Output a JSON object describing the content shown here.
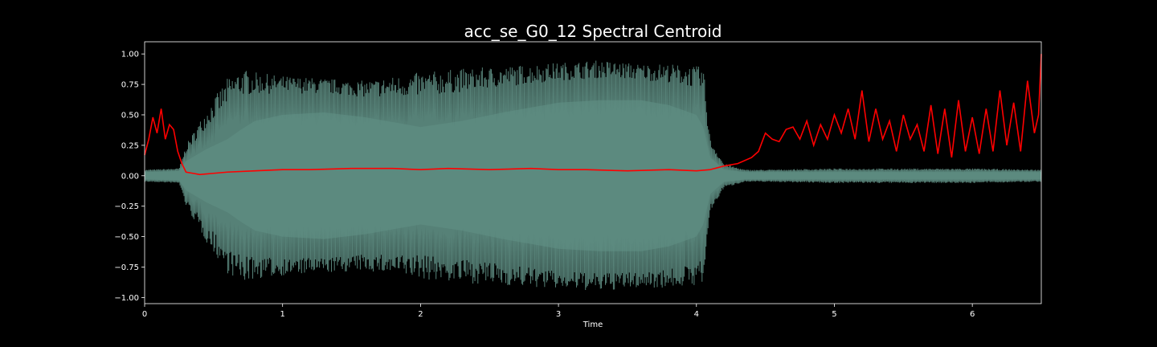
{
  "chart_data": {
    "type": "line",
    "title": "acc_se_G0_12 Spectral Centroid",
    "xlabel": "Time",
    "ylabel": "",
    "xlim": [
      0,
      6.5
    ],
    "ylim": [
      -1.05,
      1.1
    ],
    "x_ticks": [
      0,
      1,
      2,
      3,
      4,
      5,
      6
    ],
    "y_ticks": [
      -1.0,
      -0.75,
      -0.5,
      -0.25,
      0.0,
      0.25,
      0.5,
      0.75,
      1.0
    ],
    "x_tick_labels": [
      "0",
      "1",
      "2",
      "3",
      "4",
      "5",
      "6"
    ],
    "y_tick_labels": [
      "−1.00",
      "−0.75",
      "−0.50",
      "−0.25",
      "0.00",
      "0.25",
      "0.50",
      "0.75",
      "1.00"
    ],
    "grid": false,
    "background": "#000000",
    "axis_color": "#ffffff",
    "waveform": {
      "color": "#5f8f84",
      "fill_color": "#3d5a52",
      "envelope": {
        "t": [
          0,
          0.25,
          0.3,
          0.45,
          0.6,
          0.7,
          0.8,
          1.0,
          1.3,
          1.6,
          2.0,
          2.3,
          2.6,
          3.0,
          3.3,
          3.6,
          3.8,
          4.0,
          4.05,
          4.1,
          4.2,
          4.35,
          4.5,
          5.0,
          6.0,
          6.5
        ],
        "peak": [
          0.05,
          0.06,
          0.25,
          0.55,
          0.8,
          0.88,
          0.85,
          0.82,
          0.8,
          0.78,
          0.85,
          0.88,
          0.9,
          0.93,
          0.95,
          0.92,
          0.92,
          0.9,
          0.9,
          0.3,
          0.1,
          0.05,
          0.05,
          0.06,
          0.06,
          0.05
        ],
        "inner": [
          0.03,
          0.04,
          0.12,
          0.22,
          0.3,
          0.38,
          0.45,
          0.5,
          0.52,
          0.48,
          0.4,
          0.45,
          0.52,
          0.6,
          0.62,
          0.62,
          0.58,
          0.5,
          0.4,
          0.15,
          0.05,
          0.03,
          0.03,
          0.03,
          0.03,
          0.03
        ]
      }
    },
    "series": [
      {
        "color": "#ff0000",
        "x": [
          0,
          0.03,
          0.06,
          0.09,
          0.12,
          0.15,
          0.18,
          0.21,
          0.24,
          0.27,
          0.3,
          0.35,
          0.4,
          0.5,
          0.6,
          0.8,
          1.0,
          1.2,
          1.5,
          1.8,
          2.0,
          2.2,
          2.5,
          2.8,
          3.0,
          3.2,
          3.5,
          3.8,
          4.0,
          4.1,
          4.2,
          4.3,
          4.4,
          4.45,
          4.5,
          4.55,
          4.6,
          4.65,
          4.7,
          4.75,
          4.8,
          4.85,
          4.9,
          4.95,
          5.0,
          5.05,
          5.1,
          5.15,
          5.2,
          5.25,
          5.3,
          5.35,
          5.4,
          5.45,
          5.5,
          5.55,
          5.6,
          5.65,
          5.7,
          5.75,
          5.8,
          5.85,
          5.9,
          5.95,
          6.0,
          6.05,
          6.1,
          6.15,
          6.2,
          6.25,
          6.3,
          6.35,
          6.4,
          6.45,
          6.48,
          6.5
        ],
        "y": [
          0.17,
          0.3,
          0.48,
          0.35,
          0.55,
          0.3,
          0.42,
          0.38,
          0.2,
          0.1,
          0.03,
          0.02,
          0.01,
          0.02,
          0.03,
          0.04,
          0.05,
          0.05,
          0.06,
          0.06,
          0.05,
          0.06,
          0.05,
          0.06,
          0.05,
          0.05,
          0.04,
          0.05,
          0.04,
          0.05,
          0.08,
          0.1,
          0.15,
          0.2,
          0.35,
          0.3,
          0.28,
          0.38,
          0.4,
          0.3,
          0.45,
          0.25,
          0.42,
          0.3,
          0.5,
          0.35,
          0.55,
          0.3,
          0.7,
          0.28,
          0.55,
          0.3,
          0.45,
          0.2,
          0.5,
          0.3,
          0.42,
          0.2,
          0.58,
          0.18,
          0.55,
          0.15,
          0.62,
          0.2,
          0.48,
          0.18,
          0.55,
          0.2,
          0.7,
          0.25,
          0.6,
          0.2,
          0.78,
          0.35,
          0.5,
          1.0
        ]
      }
    ]
  }
}
